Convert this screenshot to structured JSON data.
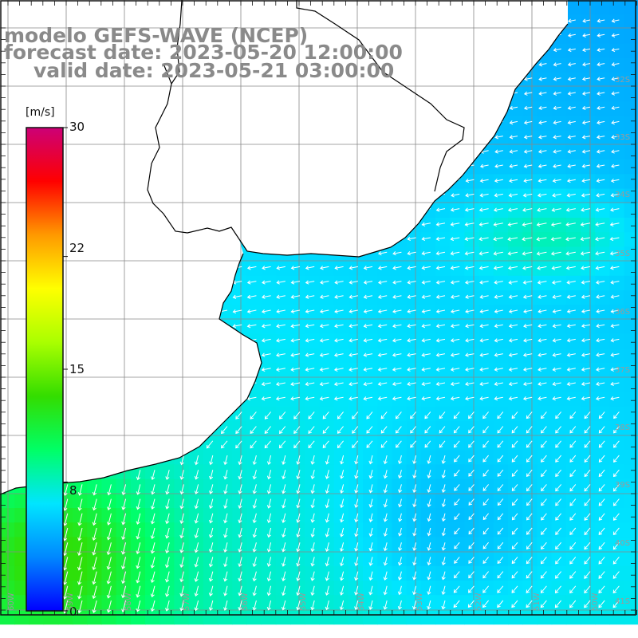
{
  "title": {
    "line1": "modelo GEFS-WAVE (NCEP)",
    "line2": "forecast date: 2023-05-20 12:00:00",
    "line3": "valid date: 2023-05-21 03:00:00"
  },
  "colorbar": {
    "unit": "[m/s]",
    "min": 0,
    "max": 30,
    "ticks": [
      "30",
      "22",
      "15",
      "8",
      "0"
    ],
    "tick_values": [
      30,
      22,
      15,
      8,
      0
    ],
    "colors": [
      "#0000ff",
      "#0088ff",
      "#00e5ff",
      "#00ff66",
      "#33dd00",
      "#aaff00",
      "#ffff00",
      "#ff9900",
      "#ff0000",
      "#cc0077"
    ]
  },
  "lat_labels": [
    "32S",
    "33S",
    "34S",
    "35S",
    "36S",
    "37S",
    "38S",
    "39S",
    "40S",
    "41S"
  ],
  "lon_labels": [
    "60W",
    "59W",
    "58W",
    "57W",
    "56W",
    "55W",
    "54W",
    "53W",
    "52W",
    "51W",
    "50W"
  ],
  "map": {
    "land_color": "#ffffff",
    "coast_color": "#000000",
    "grid_color": "#888888",
    "arrow_color": "#ffffff"
  }
}
